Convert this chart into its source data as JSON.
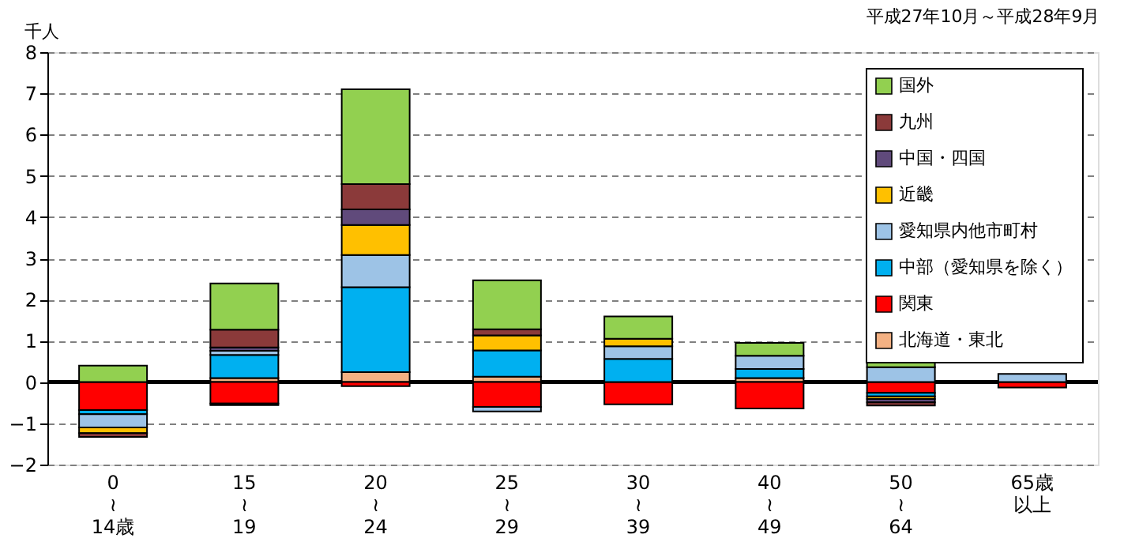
{
  "chart_data": {
    "type": "bar",
    "stacked": true,
    "subtitle": "平成27年10月～平成28年9月",
    "ylabel": "千人",
    "categories": [
      "0\n≀\n14歳",
      "15\n≀\n19",
      "20\n≀\n24",
      "25\n≀\n29",
      "30\n≀\n39",
      "40\n≀\n49",
      "50\n≀\n64",
      "65歳以上"
    ],
    "series": [
      {
        "name": "北海道・東北",
        "color": "#f4b183",
        "values": [
          null,
          0.1,
          0.24,
          0.13,
          null,
          0.1,
          null,
          null
        ]
      },
      {
        "name": "関東",
        "color": "#ff0000",
        "values": [
          -0.68,
          -0.52,
          -0.1,
          -0.6,
          -0.54,
          -0.64,
          -0.26,
          -0.13
        ]
      },
      {
        "name": "中部（愛知県を除く）",
        "color": "#00b0f0",
        "values": [
          -0.1,
          0.56,
          2.06,
          0.64,
          0.56,
          0.22,
          -0.09,
          null
        ]
      },
      {
        "name": "愛知県内他市町村",
        "color": "#9dc3e6",
        "values": [
          -0.32,
          0.1,
          0.78,
          -0.11,
          0.31,
          0.32,
          0.36,
          0.2
        ]
      },
      {
        "name": "近畿",
        "color": "#ffc000",
        "values": [
          -0.14,
          -0.04,
          0.73,
          0.36,
          0.18,
          null,
          -0.06,
          null
        ]
      },
      {
        "name": "中国・四国",
        "color": "#604a7b",
        "values": [
          null,
          0.08,
          0.38,
          null,
          null,
          null,
          -0.08,
          null
        ]
      },
      {
        "name": "九州",
        "color": "#8b3a3a",
        "values": [
          -0.09,
          0.43,
          0.61,
          0.15,
          null,
          null,
          -0.08,
          null
        ]
      },
      {
        "name": "国外",
        "color": "#92d050",
        "values": [
          0.4,
          1.12,
          2.3,
          1.19,
          0.54,
          0.31,
          0.15,
          null
        ]
      }
    ],
    "ylim": [
      -2,
      8
    ],
    "yticks": [
      -2,
      -1,
      0,
      1,
      2,
      3,
      4,
      5,
      6,
      7,
      8
    ],
    "ref_lines": [
      {
        "axis": "y",
        "value": 0,
        "color": "#000000"
      }
    ],
    "grid": "y",
    "legend": "top right"
  }
}
